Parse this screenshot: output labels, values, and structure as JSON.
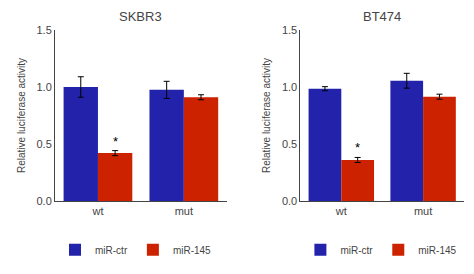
{
  "chart_data": [
    {
      "type": "bar",
      "title": "SKBR3",
      "categories": [
        "wt",
        "mut"
      ],
      "series": [
        {
          "name": "miR-ctr",
          "color": "#2222aa",
          "values": [
            1.0,
            0.975
          ],
          "errors": [
            0.09,
            0.075
          ]
        },
        {
          "name": "miR-145",
          "color": "#cc2200",
          "values": [
            0.42,
            0.91
          ],
          "errors": [
            0.022,
            0.022
          ]
        }
      ],
      "ylabel": "Relative luciferase activity",
      "ylim": [
        0.0,
        1.5
      ],
      "yticks": [
        {
          "value": 0,
          "label": "0.0"
        },
        0.5,
        {
          "value": 1,
          "label": "1.0"
        },
        1.5
      ],
      "grid": false,
      "legend": "lower left",
      "annotations": [
        {
          "text": "*",
          "category": "wt",
          "series": "miR-145"
        }
      ]
    },
    {
      "type": "bar",
      "title": "BT474",
      "categories": [
        "wt",
        "mut"
      ],
      "series": [
        {
          "name": "miR-ctr",
          "color": "#2222aa",
          "values": [
            0.985,
            1.055
          ],
          "errors": [
            0.018,
            0.065
          ]
        },
        {
          "name": "miR-145",
          "color": "#cc2200",
          "values": [
            0.36,
            0.915
          ],
          "errors": [
            0.022,
            0.022
          ]
        }
      ],
      "ylabel": "Relative luciferase activity",
      "ylim": [
        0.0,
        1.5
      ],
      "yticks": [
        {
          "value": 0,
          "label": "0.0"
        },
        0.5,
        {
          "value": 1,
          "label": "1.0"
        },
        1.5
      ],
      "grid": false,
      "legend": "lower left",
      "annotations": [
        {
          "text": "*",
          "category": "wt",
          "series": "miR-145"
        }
      ]
    }
  ]
}
